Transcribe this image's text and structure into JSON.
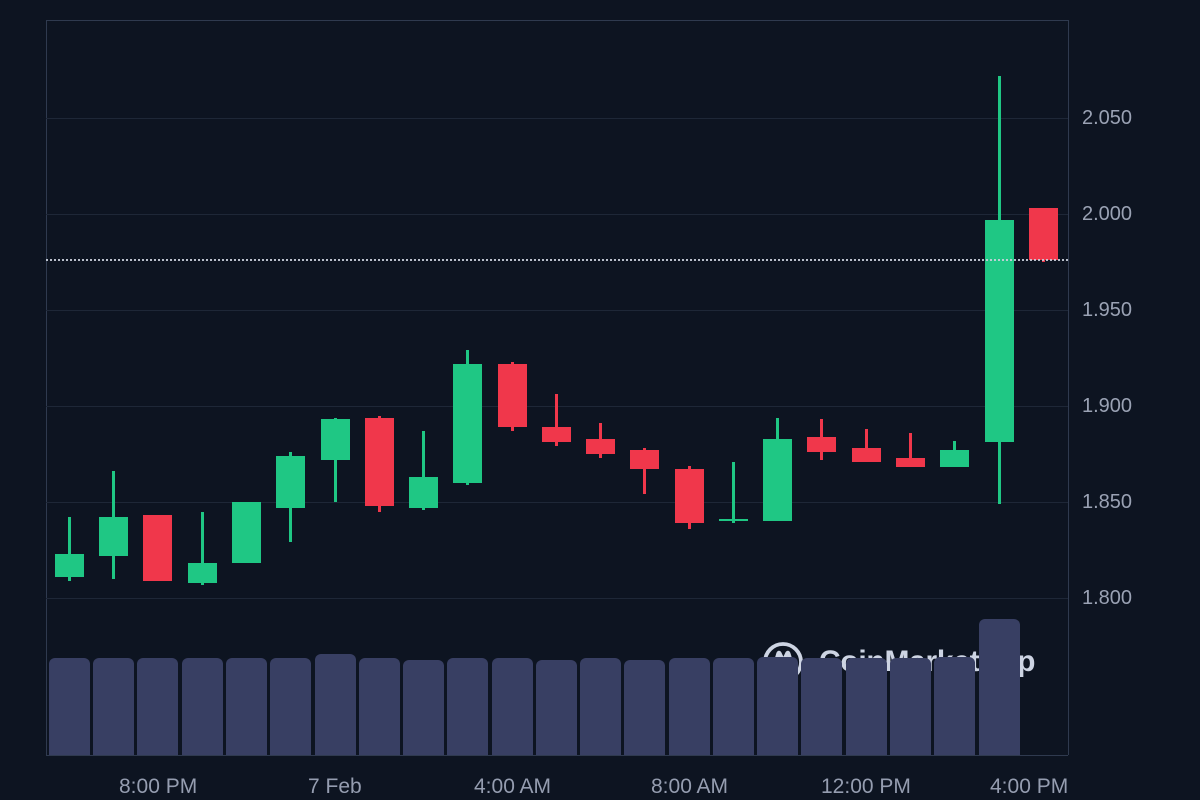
{
  "watermark": {
    "brand": "CoinMarketCap",
    "logo_icon": "coinmarketcap-logo"
  },
  "colors": {
    "background": "#0d1421",
    "up": "#1fc784",
    "down": "#f0374b",
    "volume_bar": "#383f63",
    "grid": "#1e2737",
    "axis_border": "#2f3a4f",
    "y_label": "#9aa2b4",
    "x_label": "#959db0",
    "current_price_line": "#ccd2de",
    "watermark_text": "#cdd4e3"
  },
  "chart_data": {
    "type": "candlestick",
    "interval": "1h",
    "grid": "horizontal-only",
    "y_axis": {
      "side": "right",
      "min": 1.775,
      "max": 2.101,
      "ticks": [
        {
          "label": "2.050",
          "price": 2.05
        },
        {
          "label": "2.000",
          "price": 2.0
        },
        {
          "label": "1.950",
          "price": 1.95
        },
        {
          "label": "1.900",
          "price": 1.9
        },
        {
          "label": "1.850",
          "price": 1.85
        },
        {
          "label": "1.800",
          "price": 1.8
        }
      ]
    },
    "x_axis": {
      "ticks": [
        {
          "label": "8:00 PM",
          "candle_index": 2
        },
        {
          "label": "7 Feb",
          "candle_index": 6
        },
        {
          "label": "4:00 AM",
          "candle_index": 10
        },
        {
          "label": "8:00 AM",
          "candle_index": 14
        },
        {
          "label": "12:00 PM",
          "candle_index": 18
        },
        {
          "label": "4:00 PM",
          "candle_index": 22
        }
      ]
    },
    "current_price_line": {
      "price": 1.976,
      "style": "dotted"
    },
    "candles": [
      {
        "o": 1.811,
        "h": 1.842,
        "l": 1.809,
        "c": 1.823,
        "v": 0.71
      },
      {
        "o": 1.822,
        "h": 1.866,
        "l": 1.81,
        "c": 1.842,
        "v": 0.71
      },
      {
        "o": 1.843,
        "h": 1.843,
        "l": 1.809,
        "c": 1.809,
        "v": 0.71
      },
      {
        "o": 1.808,
        "h": 1.845,
        "l": 1.807,
        "c": 1.818,
        "v": 0.71
      },
      {
        "o": 1.818,
        "h": 1.85,
        "l": 1.818,
        "c": 1.85,
        "v": 0.71
      },
      {
        "o": 1.847,
        "h": 1.876,
        "l": 1.829,
        "c": 1.874,
        "v": 0.71
      },
      {
        "o": 1.872,
        "h": 1.894,
        "l": 1.85,
        "c": 1.893,
        "v": 0.74
      },
      {
        "o": 1.894,
        "h": 1.895,
        "l": 1.845,
        "c": 1.848,
        "v": 0.71
      },
      {
        "o": 1.847,
        "h": 1.887,
        "l": 1.846,
        "c": 1.863,
        "v": 0.7
      },
      {
        "o": 1.86,
        "h": 1.929,
        "l": 1.859,
        "c": 1.922,
        "v": 0.71
      },
      {
        "o": 1.922,
        "h": 1.923,
        "l": 1.887,
        "c": 1.889,
        "v": 0.71
      },
      {
        "o": 1.889,
        "h": 1.906,
        "l": 1.879,
        "c": 1.881,
        "v": 0.7
      },
      {
        "o": 1.883,
        "h": 1.891,
        "l": 1.873,
        "c": 1.875,
        "v": 0.71
      },
      {
        "o": 1.877,
        "h": 1.878,
        "l": 1.854,
        "c": 1.867,
        "v": 0.7
      },
      {
        "o": 1.867,
        "h": 1.869,
        "l": 1.836,
        "c": 1.839,
        "v": 0.71
      },
      {
        "o": 1.84,
        "h": 1.871,
        "l": 1.839,
        "c": 1.841,
        "v": 0.71
      },
      {
        "o": 1.84,
        "h": 1.894,
        "l": 1.84,
        "c": 1.883,
        "v": 0.72
      },
      {
        "o": 1.884,
        "h": 1.893,
        "l": 1.872,
        "c": 1.876,
        "v": 0.71
      },
      {
        "o": 1.878,
        "h": 1.888,
        "l": 1.871,
        "c": 1.871,
        "v": 0.71
      },
      {
        "o": 1.873,
        "h": 1.886,
        "l": 1.868,
        "c": 1.868,
        "v": 0.71
      },
      {
        "o": 1.868,
        "h": 1.882,
        "l": 1.868,
        "c": 1.877,
        "v": 0.72
      },
      {
        "o": 1.881,
        "h": 2.072,
        "l": 1.849,
        "c": 1.997,
        "v": 1.0
      },
      {
        "o": 2.003,
        "h": 2.003,
        "l": 1.975,
        "c": 1.976,
        "v": 0
      }
    ]
  }
}
